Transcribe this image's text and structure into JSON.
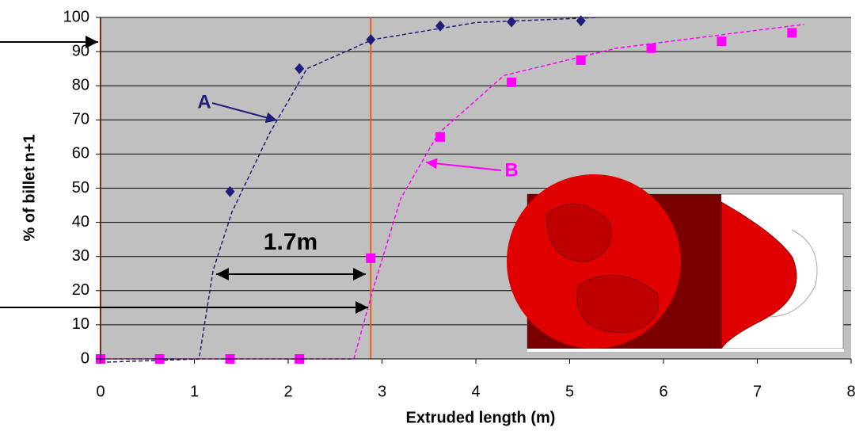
{
  "chart_data": {
    "type": "scatter",
    "x_label": "Extruded length (m)",
    "y_label": "% of billet n+1",
    "xlim": [
      0,
      8
    ],
    "ylim": [
      0,
      100
    ],
    "xticks": [
      0,
      1,
      2,
      3,
      4,
      5,
      6,
      7,
      8
    ],
    "yticks": [
      0,
      10,
      20,
      30,
      40,
      50,
      60,
      70,
      80,
      90,
      100
    ],
    "grid": true,
    "series": [
      {
        "name": "A",
        "color": "#1f1f7a",
        "marker": "diamond",
        "x": [
          1.38,
          2.12,
          2.88,
          3.62,
          4.38,
          5.12
        ],
        "values": [
          49,
          85,
          93.5,
          97.5,
          98.7,
          99
        ],
        "trend_x": [
          0,
          1.05,
          1.2,
          1.4,
          1.8,
          2.2,
          2.9,
          4,
          5.3
        ],
        "trend_values": [
          -1,
          0,
          26,
          43,
          66,
          85,
          93.5,
          98.5,
          100
        ]
      },
      {
        "name": "B",
        "color": "#ff00ff",
        "marker": "square",
        "x": [
          0,
          0.63,
          1.38,
          2.12,
          2.88,
          3.62,
          4.38,
          5.12,
          5.87,
          6.62,
          7.37
        ],
        "values": [
          0,
          0,
          0,
          0,
          29.5,
          65,
          81,
          87.5,
          91,
          93,
          95.5
        ],
        "trend_x": [
          0,
          2.7,
          2.9,
          3.2,
          3.6,
          4.3,
          5.5,
          6.5,
          7.5
        ],
        "trend_values": [
          0,
          0,
          20,
          47,
          66,
          83,
          91,
          94.5,
          98
        ]
      }
    ],
    "vlines": [
      0,
      2.88
    ],
    "vline_color": "#e0601a",
    "annotation": "1.7m"
  }
}
